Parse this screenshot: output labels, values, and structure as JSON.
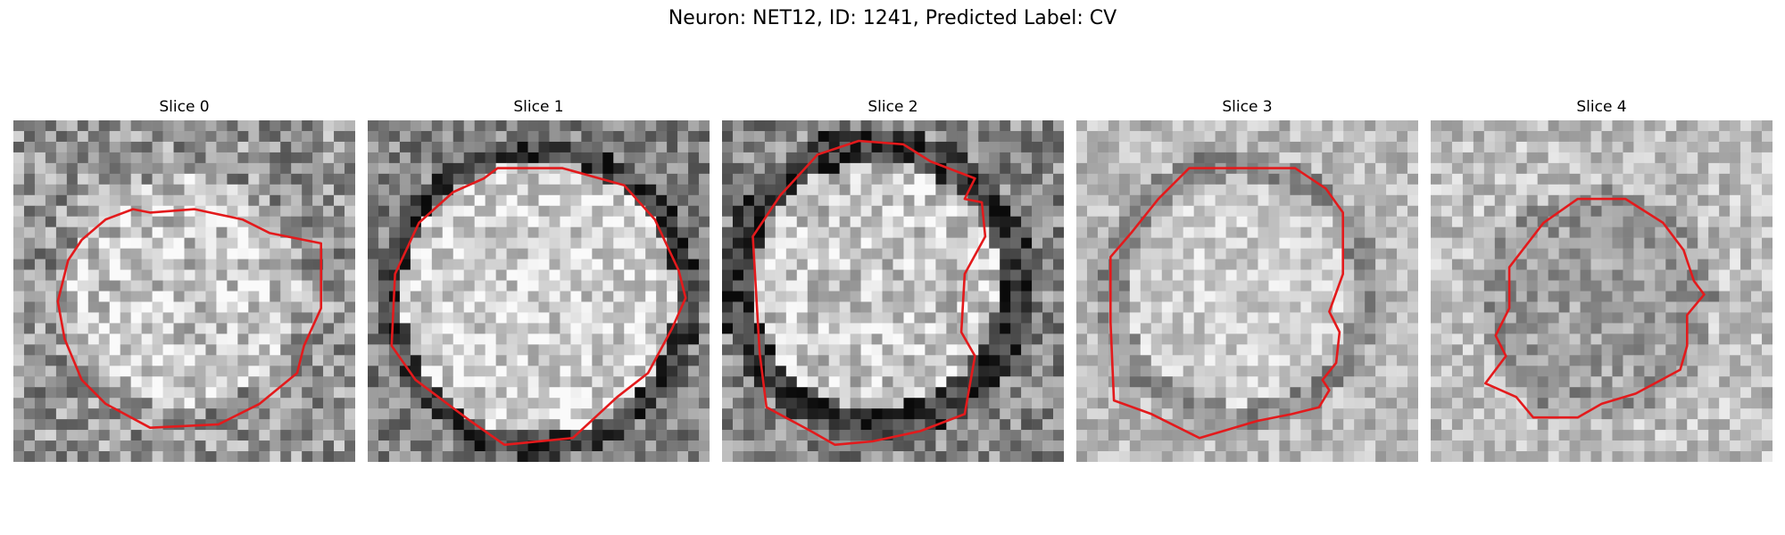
{
  "figure": {
    "title": "Neuron: NET12, ID: 1241, Predicted Label: CV",
    "contour_color": "#e31a1c"
  },
  "panels": [
    {
      "title": "Slice 0"
    },
    {
      "title": "Slice 1"
    },
    {
      "title": "Slice 2"
    },
    {
      "title": "Slice 3"
    },
    {
      "title": "Slice 4"
    }
  ]
}
